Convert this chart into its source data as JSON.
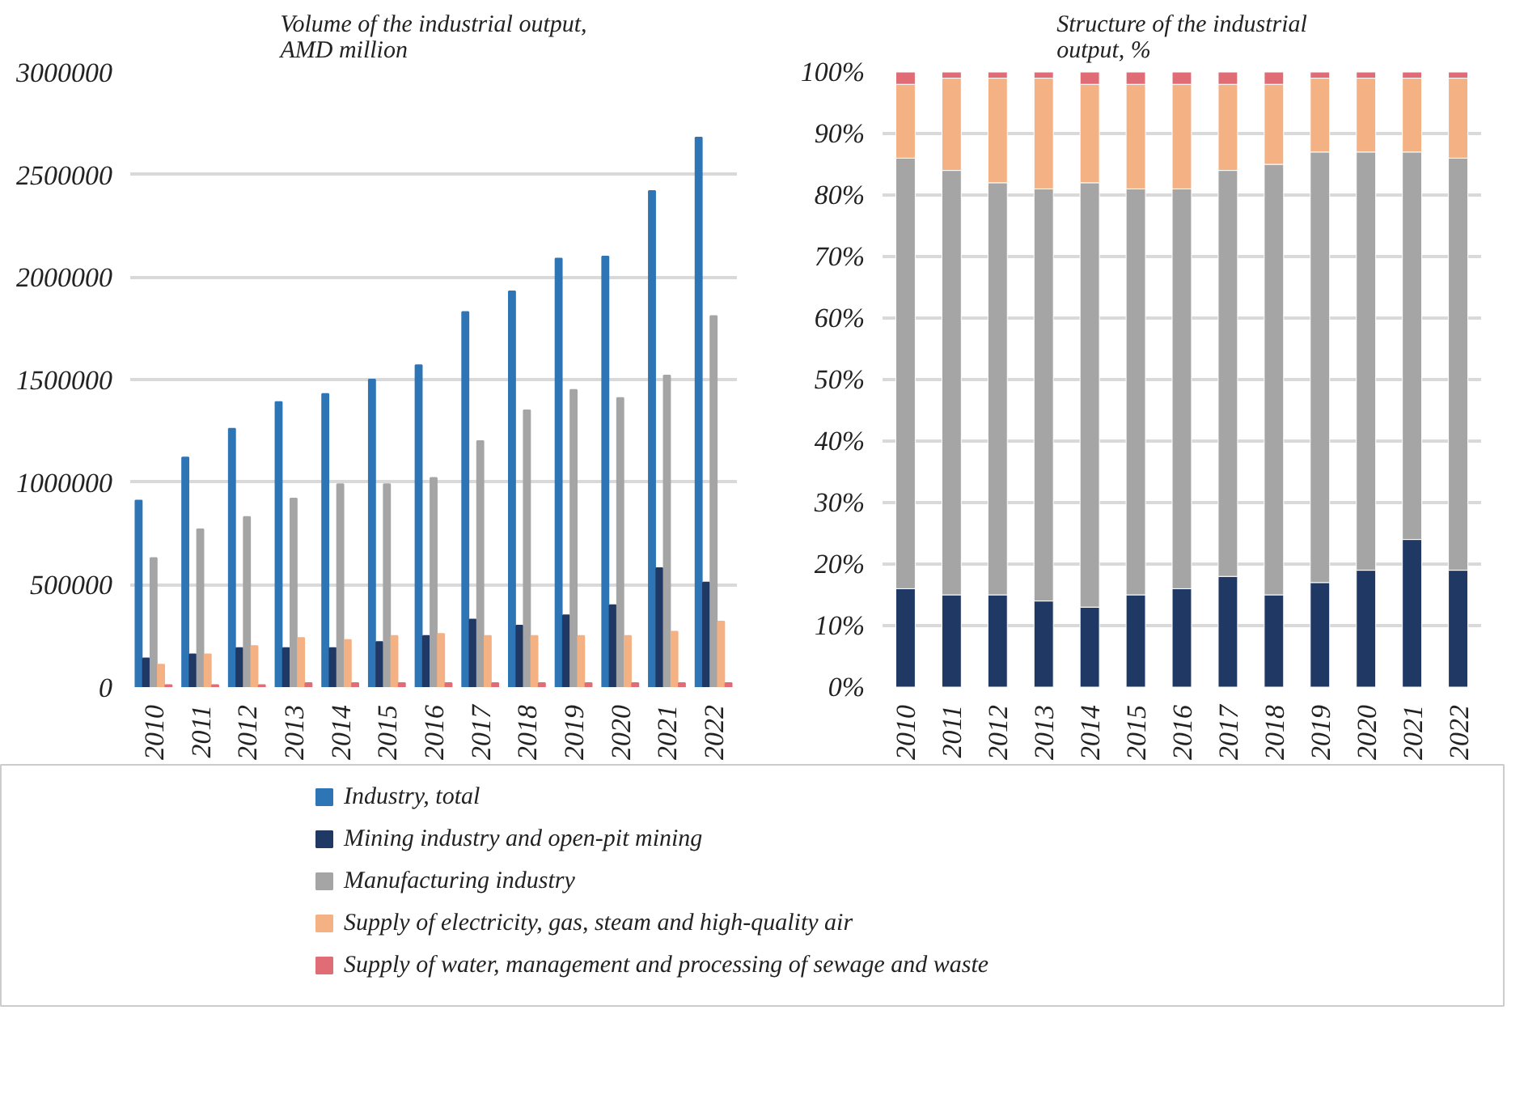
{
  "chart_data": [
    {
      "type": "bar",
      "title": "Volume of the industrial output, AMD million",
      "categories": [
        "2010",
        "2011",
        "2012",
        "2013",
        "2014",
        "2015",
        "2016",
        "2017",
        "2018",
        "2019",
        "2020",
        "2021",
        "2022"
      ],
      "series": [
        {
          "name": "Industry,  total",
          "color": "#2e75b6",
          "values": [
            910000,
            1120000,
            1260000,
            1390000,
            1430000,
            1500000,
            1570000,
            1830000,
            1930000,
            2090000,
            2100000,
            2420000,
            2680000
          ]
        },
        {
          "name": "Mining industry and open-pit mining",
          "color": "#1f3864",
          "values": [
            140000,
            160000,
            190000,
            190000,
            190000,
            220000,
            250000,
            330000,
            300000,
            350000,
            400000,
            580000,
            510000
          ]
        },
        {
          "name": "Manufacturing industry",
          "color": "#a5a5a5",
          "values": [
            630000,
            770000,
            830000,
            920000,
            990000,
            990000,
            1020000,
            1200000,
            1350000,
            1450000,
            1410000,
            1520000,
            1810000
          ]
        },
        {
          "name": "Supply of electricity, gas, steam and high-quality air",
          "color": "#f4b183",
          "values": [
            110000,
            160000,
            200000,
            240000,
            230000,
            250000,
            260000,
            250000,
            250000,
            250000,
            250000,
            270000,
            320000
          ]
        },
        {
          "name": "Supply of water, management and processing of sewage and waste",
          "color": "#e06c75",
          "values": [
            10000,
            10000,
            10000,
            20000,
            20000,
            20000,
            20000,
            20000,
            20000,
            20000,
            20000,
            20000,
            20000
          ]
        }
      ],
      "ylim": [
        0,
        3000000
      ],
      "yticks": [
        0,
        500000,
        1000000,
        1500000,
        2000000,
        2500000,
        3000000
      ],
      "grid": "y",
      "legend": "bottom"
    },
    {
      "type": "bar",
      "stacked": true,
      "title": "Structure of the industrial output, %",
      "categories": [
        "2010",
        "2011",
        "2012",
        "2013",
        "2014",
        "2015",
        "2016",
        "2017",
        "2018",
        "2019",
        "2020",
        "2021",
        "2022"
      ],
      "series": [
        {
          "color": "#1f3864",
          "values": [
            16,
            15,
            15,
            14,
            13,
            15,
            16,
            18,
            15,
            17,
            19,
            24,
            19
          ]
        },
        {
          "color": "#a5a5a5",
          "values": [
            70,
            69,
            67,
            67,
            69,
            66,
            65,
            66,
            70,
            70,
            68,
            63,
            67
          ]
        },
        {
          "color": "#f4b183",
          "values": [
            12,
            15,
            17,
            18,
            16,
            17,
            17,
            14,
            13,
            12,
            12,
            12,
            13
          ]
        },
        {
          "color": "#e06c75",
          "values": [
            2,
            1,
            1,
            1,
            2,
            2,
            2,
            2,
            2,
            1,
            1,
            1,
            1
          ]
        }
      ],
      "ylim": [
        0,
        100
      ],
      "yticks": [
        {
          "value": 0,
          "label": "0%"
        },
        {
          "value": 10,
          "label": "10%"
        },
        {
          "value": 20,
          "label": "20%"
        },
        {
          "value": 30,
          "label": "30%"
        },
        {
          "value": 40,
          "label": "40%"
        },
        {
          "value": 50,
          "label": "50%"
        },
        {
          "value": 60,
          "label": "60%"
        },
        {
          "value": 70,
          "label": "70%"
        },
        {
          "value": 80,
          "label": "80%"
        },
        {
          "value": 90,
          "label": "90%"
        },
        {
          "value": 100,
          "label": "100%"
        }
      ],
      "grid": "y"
    }
  ]
}
